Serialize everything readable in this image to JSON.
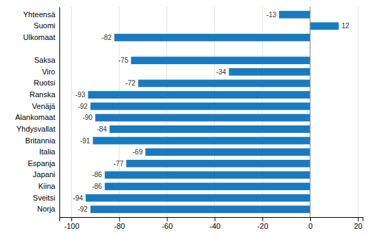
{
  "chart_data": {
    "type": "bar",
    "orientation": "horizontal",
    "categories": [
      "Norja",
      "Sveitsi",
      "Kiina",
      "Japani",
      "Espanja",
      "Italia",
      "Britannia",
      "Yhdysvallat",
      "Alankomaat",
      "Venäjä",
      "Ranska",
      "Ruotsi",
      "Viro",
      "Saksa",
      null,
      "Ulkomaat",
      "Suomi",
      "Yhteensä"
    ],
    "values": [
      -92,
      -94,
      -86,
      -86,
      -77,
      -69,
      -91,
      -84,
      -90,
      -92,
      -93,
      -72,
      -34,
      -75,
      null,
      -82,
      12,
      -13
    ],
    "color": "#1a7abf",
    "xlim": [
      -105,
      22
    ],
    "xticks": [
      -100,
      -80,
      -60,
      -40,
      -20,
      0,
      20
    ],
    "grid": true,
    "data_labels": true
  }
}
